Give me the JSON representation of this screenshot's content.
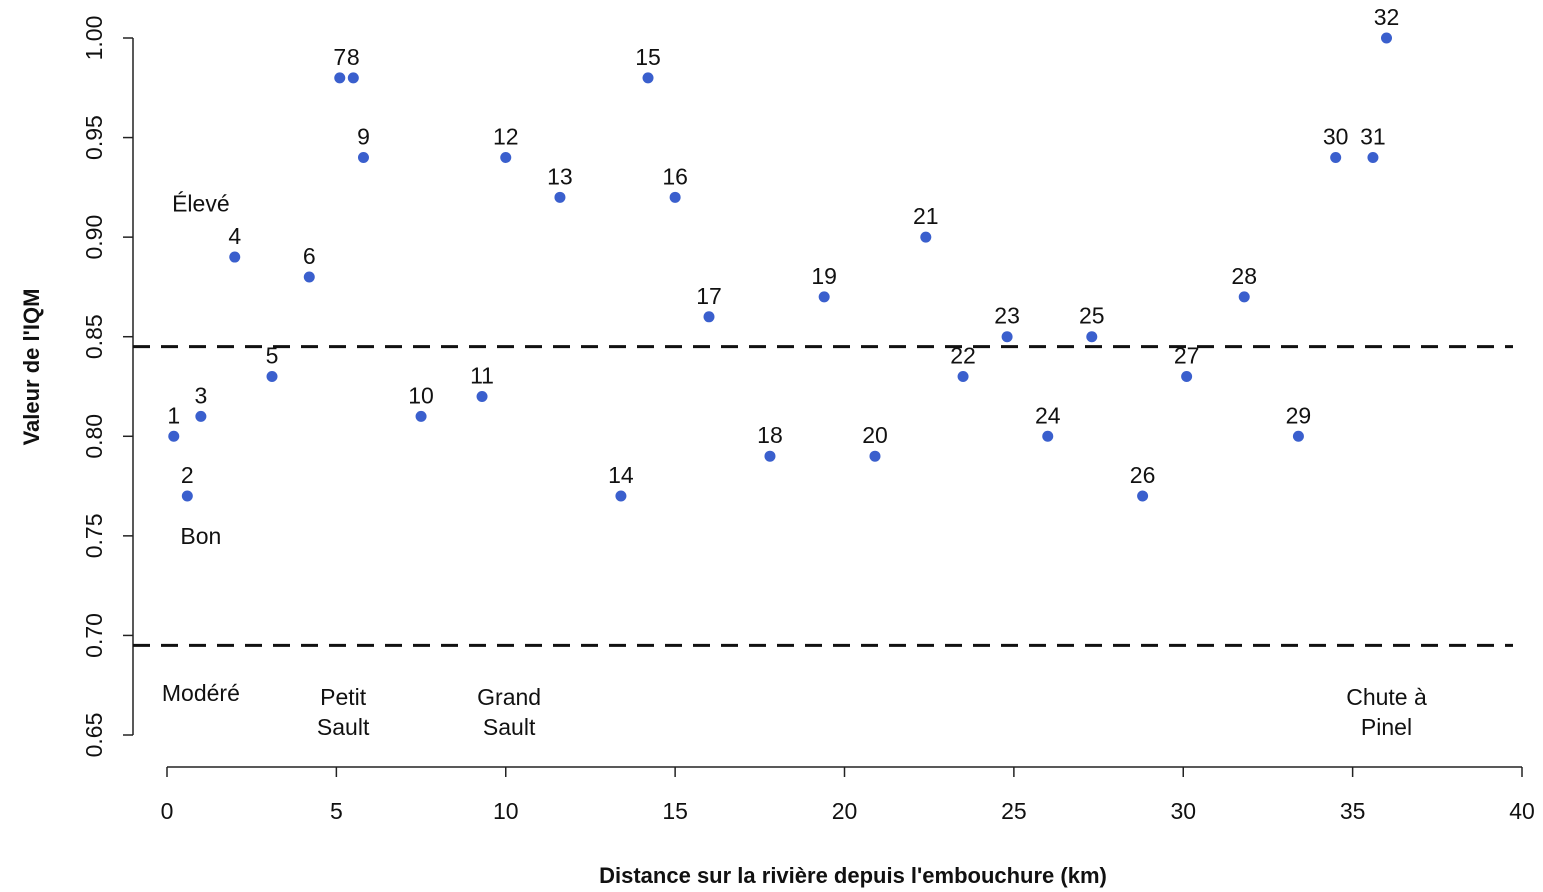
{
  "chart_data": {
    "type": "scatter",
    "title": "",
    "xlabel": "Distance sur la rivière depuis l'embouchure (km)",
    "ylabel": "Valeur de l'IQM",
    "xlim": [
      0,
      40
    ],
    "ylim": [
      0.65,
      1.0
    ],
    "x_ticks": [
      0,
      5,
      10,
      15,
      20,
      25,
      30,
      35,
      40
    ],
    "x_tick_labels": [
      "0",
      "5",
      "10",
      "15",
      "20",
      "25",
      "30",
      "35",
      "40"
    ],
    "y_ticks": [
      0.65,
      0.7,
      0.75,
      0.8,
      0.85,
      0.9,
      0.95,
      1.0
    ],
    "y_tick_labels": [
      "0.65",
      "0.70",
      "0.75",
      "0.80",
      "0.85",
      "0.90",
      "0.95",
      "1.00"
    ],
    "grid": false,
    "point_color": "#3a5fcd",
    "reference_lines": [
      0.845,
      0.695
    ],
    "points": [
      {
        "label": "1",
        "x": 0.2,
        "y": 0.8
      },
      {
        "label": "2",
        "x": 0.6,
        "y": 0.77
      },
      {
        "label": "3",
        "x": 1.0,
        "y": 0.81
      },
      {
        "label": "4",
        "x": 2.0,
        "y": 0.89
      },
      {
        "label": "5",
        "x": 3.1,
        "y": 0.83
      },
      {
        "label": "6",
        "x": 4.2,
        "y": 0.88
      },
      {
        "label": "7",
        "x": 5.1,
        "y": 0.98
      },
      {
        "label": "8",
        "x": 5.5,
        "y": 0.98
      },
      {
        "label": "9",
        "x": 5.8,
        "y": 0.94
      },
      {
        "label": "10",
        "x": 7.5,
        "y": 0.81
      },
      {
        "label": "11",
        "x": 9.3,
        "y": 0.82
      },
      {
        "label": "12",
        "x": 10.0,
        "y": 0.94
      },
      {
        "label": "13",
        "x": 11.6,
        "y": 0.92
      },
      {
        "label": "14",
        "x": 13.4,
        "y": 0.77
      },
      {
        "label": "15",
        "x": 14.2,
        "y": 0.98
      },
      {
        "label": "16",
        "x": 15.0,
        "y": 0.92
      },
      {
        "label": "17",
        "x": 16.0,
        "y": 0.86
      },
      {
        "label": "18",
        "x": 17.8,
        "y": 0.79
      },
      {
        "label": "19",
        "x": 19.4,
        "y": 0.87
      },
      {
        "label": "20",
        "x": 20.9,
        "y": 0.79
      },
      {
        "label": "21",
        "x": 22.4,
        "y": 0.9
      },
      {
        "label": "22",
        "x": 23.5,
        "y": 0.83
      },
      {
        "label": "23",
        "x": 24.8,
        "y": 0.85
      },
      {
        "label": "24",
        "x": 26.0,
        "y": 0.8
      },
      {
        "label": "25",
        "x": 27.3,
        "y": 0.85
      },
      {
        "label": "26",
        "x": 28.8,
        "y": 0.77
      },
      {
        "label": "27",
        "x": 30.1,
        "y": 0.83
      },
      {
        "label": "28",
        "x": 31.8,
        "y": 0.87
      },
      {
        "label": "29",
        "x": 33.4,
        "y": 0.8
      },
      {
        "label": "30",
        "x": 34.5,
        "y": 0.94
      },
      {
        "label": "31",
        "x": 35.6,
        "y": 0.94
      },
      {
        "label": "32",
        "x": 36.0,
        "y": 1.0
      }
    ],
    "annotations": [
      {
        "lines": [
          "Élevé"
        ],
        "x": 1.0,
        "y": 0.913
      },
      {
        "lines": [
          "Bon"
        ],
        "x": 1.0,
        "y": 0.746
      },
      {
        "lines": [
          "Modéré"
        ],
        "x": 1.0,
        "y": 0.667
      },
      {
        "lines": [
          "Petit",
          "Sault"
        ],
        "x": 5.2,
        "y": 0.665
      },
      {
        "lines": [
          "Grand",
          "Sault"
        ],
        "x": 10.1,
        "y": 0.665
      },
      {
        "lines": [
          "Chute à",
          "Pinel"
        ],
        "x": 36.0,
        "y": 0.665
      }
    ]
  }
}
